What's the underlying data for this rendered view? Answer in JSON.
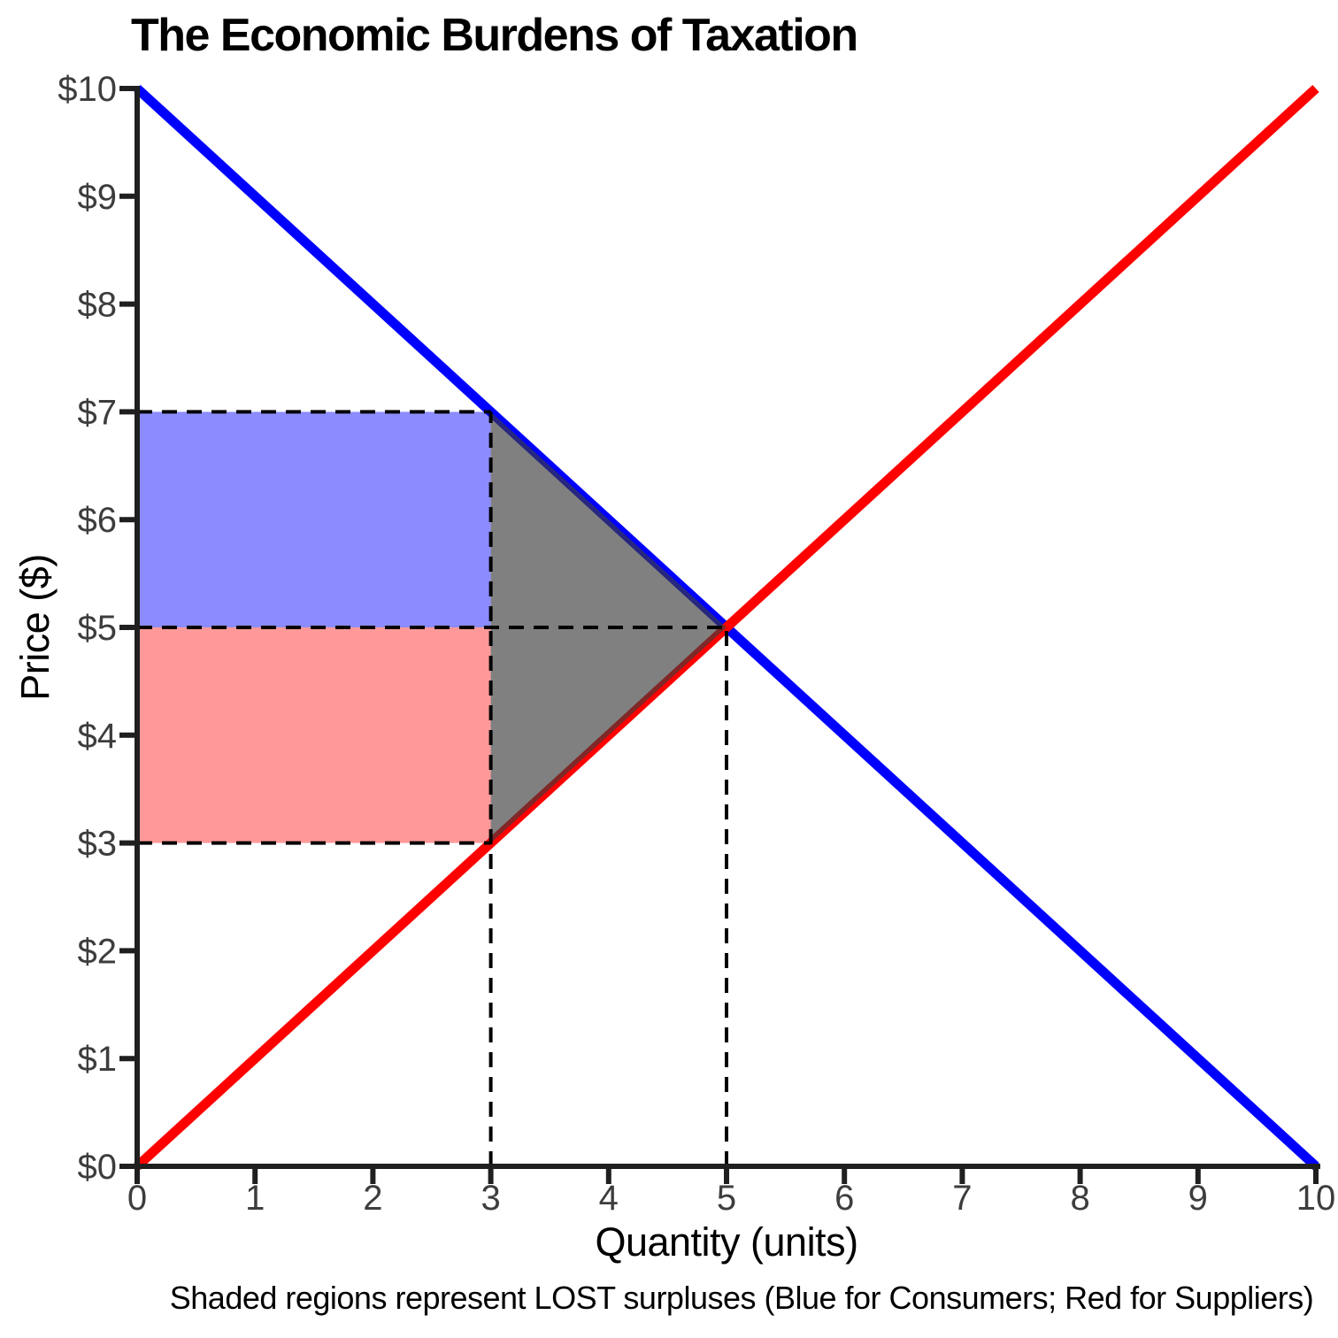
{
  "title": "The Economic Burdens of Taxation",
  "caption": "Shaded regions represent LOST surpluses (Blue for Consumers; Red for Suppliers)",
  "chart_data": {
    "type": "line",
    "title": "The Economic Burdens of Taxation",
    "xlabel": "Quantity (units)",
    "ylabel": "Price ($)",
    "xlim": [
      0,
      10
    ],
    "ylim": [
      0,
      10
    ],
    "grid": false,
    "legend": "none",
    "x_ticks": {
      "values": [
        0,
        1,
        2,
        3,
        4,
        5,
        6,
        7,
        8,
        9,
        10
      ],
      "labels": [
        "0",
        "1",
        "2",
        "3",
        "4",
        "5",
        "6",
        "7",
        "8",
        "9",
        "10"
      ]
    },
    "y_ticks": {
      "values": [
        0,
        1,
        2,
        3,
        4,
        5,
        6,
        7,
        8,
        9,
        10
      ],
      "labels": [
        "$0",
        "$1",
        "$2",
        "$3",
        "$4",
        "$5",
        "$6",
        "$7",
        "$8",
        "$9",
        "$10"
      ]
    },
    "series": [
      {
        "name": "demand",
        "x": [
          0,
          10
        ],
        "y": [
          10,
          0
        ],
        "color": "#0000ff",
        "width": 11
      },
      {
        "name": "supply",
        "x": [
          0,
          10
        ],
        "y": [
          0,
          10
        ],
        "color": "#ff0000",
        "width": 11
      }
    ],
    "regions": [
      {
        "name": "lost-consumer-surplus",
        "shape": "rect",
        "x": [
          0,
          3
        ],
        "y": [
          5,
          7
        ],
        "fill": "rgba(0,0,255,0.45)",
        "layer": "under"
      },
      {
        "name": "lost-supplier-surplus",
        "shape": "rect",
        "x": [
          0,
          3
        ],
        "y": [
          3,
          5
        ],
        "fill": "rgba(255,0,0,0.40)",
        "layer": "under"
      },
      {
        "name": "deadweight-loss",
        "shape": "polygon",
        "points": [
          [
            3,
            7
          ],
          [
            5,
            5
          ],
          [
            3,
            3
          ]
        ],
        "fill": "rgba(60,60,60,0.65)",
        "layer": "over"
      }
    ],
    "guide_lines": [
      {
        "orient": "h",
        "value": 7,
        "from": 0,
        "to": 3
      },
      {
        "orient": "h",
        "value": 5,
        "from": 0,
        "to": 5
      },
      {
        "orient": "h",
        "value": 3,
        "from": 0,
        "to": 3
      },
      {
        "orient": "v",
        "value": 3,
        "from": 0,
        "to": 7
      },
      {
        "orient": "v",
        "value": 5,
        "from": 0,
        "to": 5
      }
    ],
    "key_points": {
      "equilibrium": {
        "quantity": 5,
        "price": 5
      },
      "with_tax": {
        "quantity": 3,
        "buyer_price": 7,
        "seller_price": 3
      }
    },
    "colors": {
      "demand_line": "#0000ff",
      "supply_line": "#ff0000",
      "axis": "#1f1f1f",
      "tick_label": "#3d3d3d",
      "text": "#000000",
      "guide_dash": "#000000"
    }
  }
}
